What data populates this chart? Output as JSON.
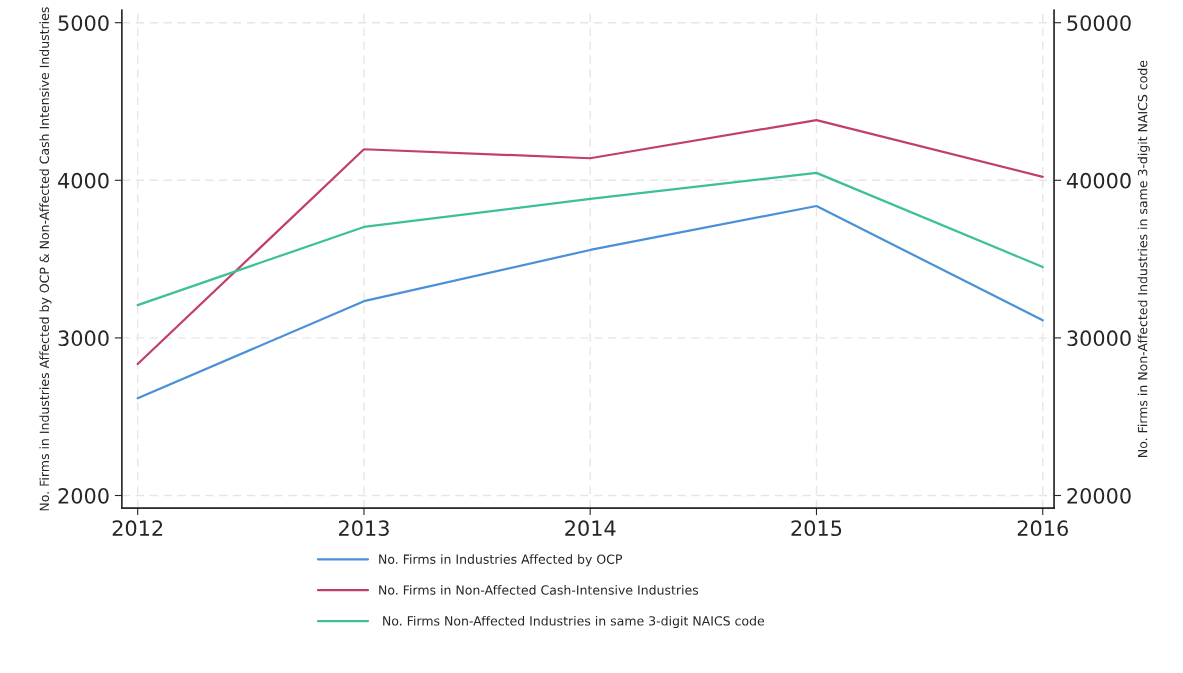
{
  "chart_data": {
    "type": "line",
    "ylabel": "No. Firms in Industries Affected by OCP & Non-Affected Cash Intensive Industries",
    "y2label": "No. Firms in Non-Affected Industries in same 3-digit NAICS code",
    "x": [
      2012,
      2013,
      2014,
      2015,
      2016
    ],
    "series": [
      {
        "name": "No. Firms in Industries Affected by OCP",
        "color": "#4a90d9",
        "values": [
          2617,
          3233,
          3558,
          3837,
          3112
        ]
      },
      {
        "name": "No. Firms in Non-Affected Cash-Intensive Industries",
        "color": "#c0406a",
        "values": [
          2834,
          4197,
          4140,
          4382,
          4022
        ]
      },
      {
        "name": " No. Firms Non-Affected Industries in same 3-digit NAICS code",
        "color": "#3cbf9a",
        "axis": "y2",
        "values": [
          32080,
          37040,
          38820,
          40470,
          34500
        ]
      }
    ],
    "xlim": [
      2011.93,
      2016.05
    ],
    "xticks": [
      2012,
      2013,
      2014,
      2015,
      2016
    ],
    "ylim": [
      1920,
      5080
    ],
    "yticks": [
      2000,
      3000,
      4000,
      5000
    ],
    "y2lim": [
      19200,
      50800
    ],
    "y2ticks": [
      20000,
      30000,
      40000,
      50000
    ],
    "grid": true,
    "legend": "bottom",
    "marker": "none",
    "line_style": "solid"
  }
}
